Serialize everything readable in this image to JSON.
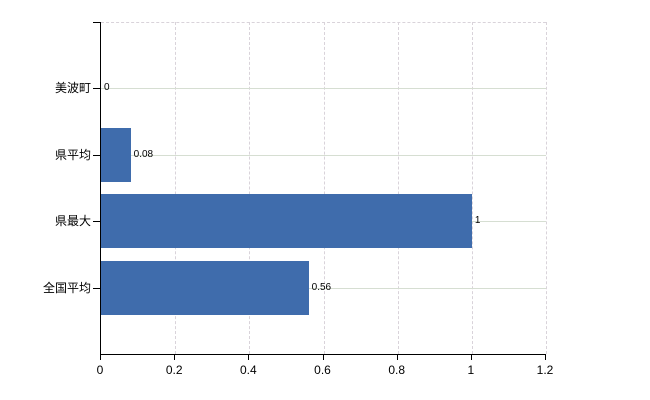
{
  "chart_data": {
    "type": "bar",
    "orientation": "horizontal",
    "title": "",
    "xlabel": "",
    "ylabel": "",
    "categories": [
      "美波町",
      "県平均",
      "県最大",
      "全国平均"
    ],
    "values": [
      0,
      0.08,
      1,
      0.56
    ],
    "value_labels": [
      "0",
      "0.08",
      "1",
      "0.56"
    ],
    "xlim": [
      0,
      1.2
    ],
    "x_tick_values": [
      0,
      0.2,
      0.4,
      0.6,
      0.8,
      1,
      1.2
    ],
    "x_tick_labels": [
      "0",
      "0.2",
      "0.4",
      "0.6",
      "0.8",
      "1",
      "1.2"
    ],
    "grid": {
      "vertical": "dashed",
      "horizontal": "solid",
      "top_border": "dashed",
      "legend_position": "none"
    },
    "colors": {
      "bar": "#3f6cac",
      "axis": "#000000",
      "grid_vertical": "#d9d3da",
      "grid_horizontal": "#d6ded2",
      "text": "#000000",
      "background": "#ffffff"
    }
  }
}
